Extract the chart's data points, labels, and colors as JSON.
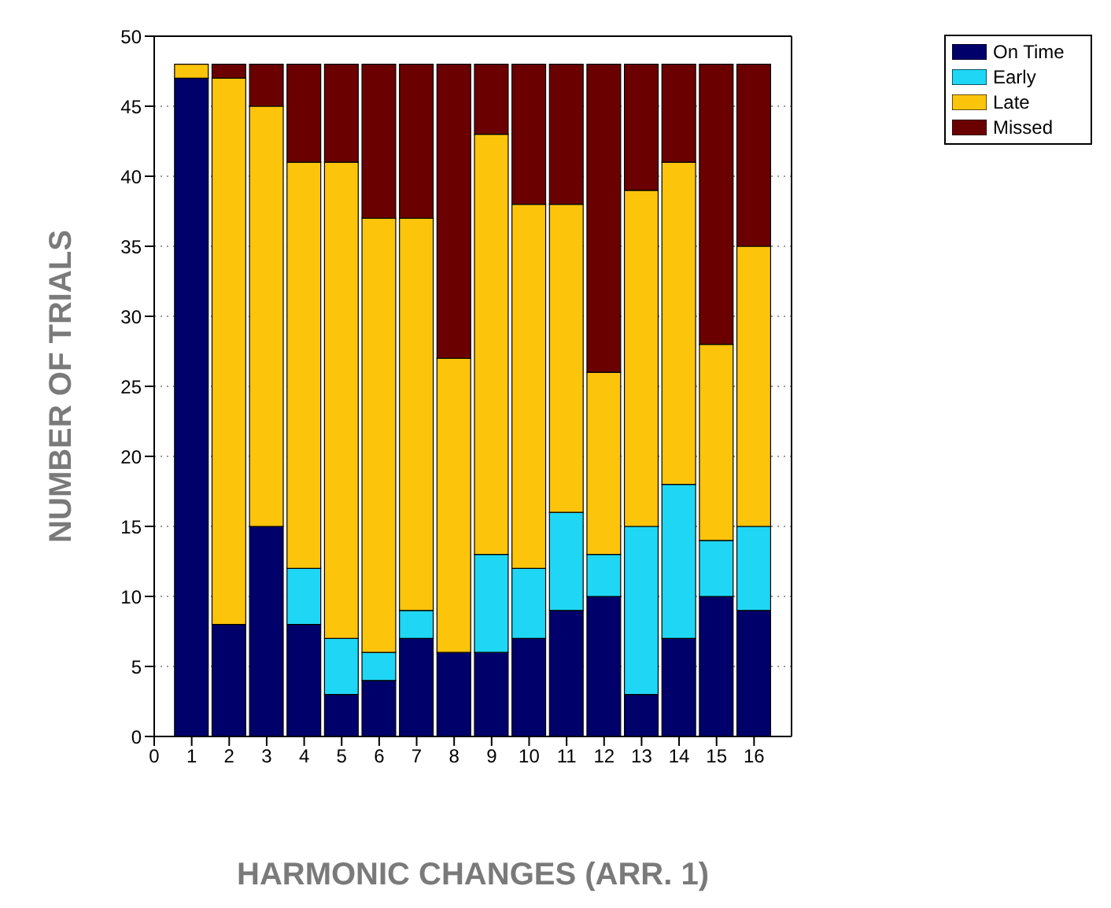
{
  "chart_data": {
    "type": "bar",
    "stacked": true,
    "xlabel": "HARMONIC CHANGES (ARR. 1)",
    "ylabel": "NUMBER OF TRIALS",
    "x": [
      1,
      2,
      3,
      4,
      5,
      6,
      7,
      8,
      9,
      10,
      11,
      12,
      13,
      14,
      15,
      16
    ],
    "xlim": [
      0,
      17
    ],
    "xticks": [
      0,
      1,
      2,
      3,
      4,
      5,
      6,
      7,
      8,
      9,
      10,
      11,
      12,
      13,
      14,
      15,
      16
    ],
    "ylim": [
      0,
      50
    ],
    "yticks": [
      0,
      5,
      10,
      15,
      20,
      25,
      30,
      35,
      40,
      45,
      50
    ],
    "grid": "y",
    "legend": "top right",
    "series": [
      {
        "name": "On Time",
        "color": "#00006b",
        "values": [
          47,
          8,
          15,
          8,
          3,
          4,
          7,
          6,
          6,
          7,
          9,
          10,
          3,
          7,
          10,
          9
        ]
      },
      {
        "name": "Early",
        "color": "#1fd6f5",
        "values": [
          0,
          0,
          0,
          4,
          4,
          2,
          2,
          0,
          7,
          5,
          7,
          3,
          12,
          11,
          4,
          6
        ]
      },
      {
        "name": "Late",
        "color": "#fcc40a",
        "values": [
          1,
          39,
          30,
          29,
          34,
          31,
          28,
          21,
          30,
          26,
          22,
          13,
          24,
          23,
          14,
          20
        ]
      },
      {
        "name": "Missed",
        "color": "#6b0000",
        "values": [
          0,
          1,
          3,
          7,
          7,
          11,
          11,
          21,
          5,
          10,
          10,
          22,
          9,
          7,
          20,
          13
        ]
      }
    ]
  }
}
